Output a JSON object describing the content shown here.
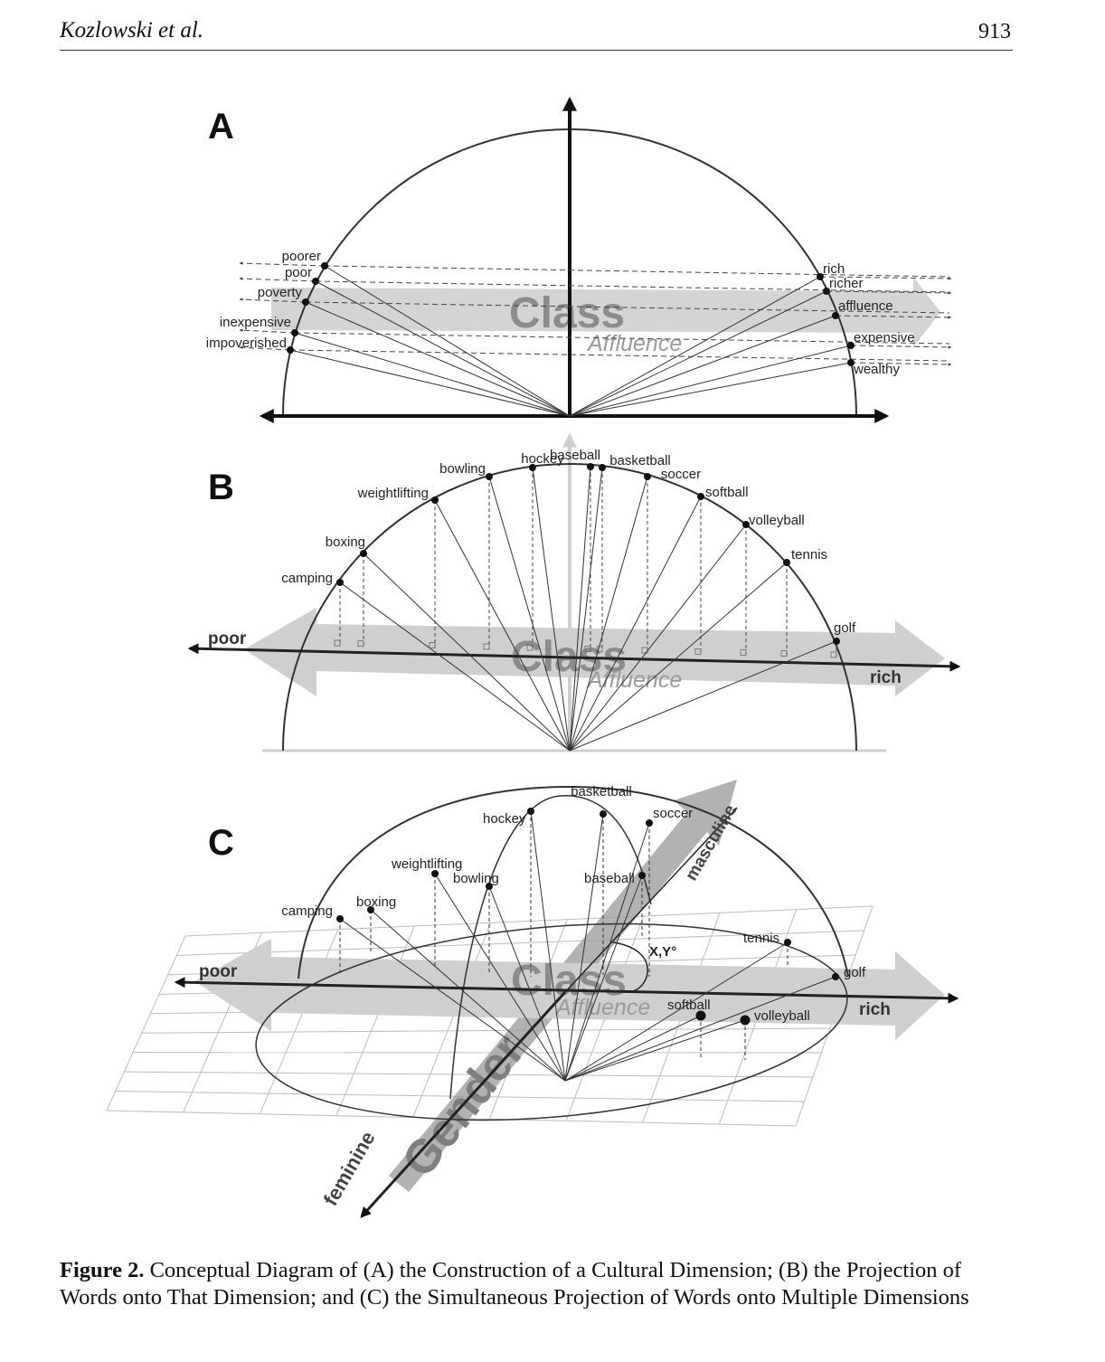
{
  "header": {
    "author": "Kozlowski et al.",
    "page_number": "913"
  },
  "figure": {
    "panel_a": {
      "letter": "A",
      "dimension_label": "Class",
      "subdimension_label": "Affluence",
      "left_words": [
        "poorer",
        "poor",
        "poverty",
        "inexpensive",
        "impoverished"
      ],
      "right_words": [
        "rich",
        "richer",
        "affluence",
        "expensive",
        "wealthy"
      ]
    },
    "panel_b": {
      "letter": "B",
      "axis_left": "poor",
      "axis_right": "rich",
      "dimension_label": "Class",
      "subdimension_label": "Affluence",
      "words": [
        "camping",
        "boxing",
        "weightlifting",
        "bowling",
        "hockey",
        "baseball",
        "basketball",
        "soccer",
        "softball",
        "volleyball",
        "tennis",
        "golf"
      ]
    },
    "panel_c": {
      "letter": "C",
      "axis_left": "poor",
      "axis_right": "rich",
      "dimension_label": "Class",
      "subdimension_label": "Affluence",
      "gender_label": "Gender",
      "gender_low": "feminine",
      "gender_high": "masculine",
      "angle_label": "X,Y°",
      "words": [
        "camping",
        "boxing",
        "weightlifting",
        "bowling",
        "hockey",
        "basketball",
        "soccer",
        "baseball",
        "tennis",
        "golf",
        "softball",
        "volleyball"
      ]
    }
  },
  "caption": {
    "label": "Figure 2.",
    "text": "Conceptual Diagram of (A) the Construction of a Cultural Dimension; (B) the Projection of Words onto That Dimension; and (C) the Simultaneous Projection of Words onto Multiple Dimensions"
  }
}
